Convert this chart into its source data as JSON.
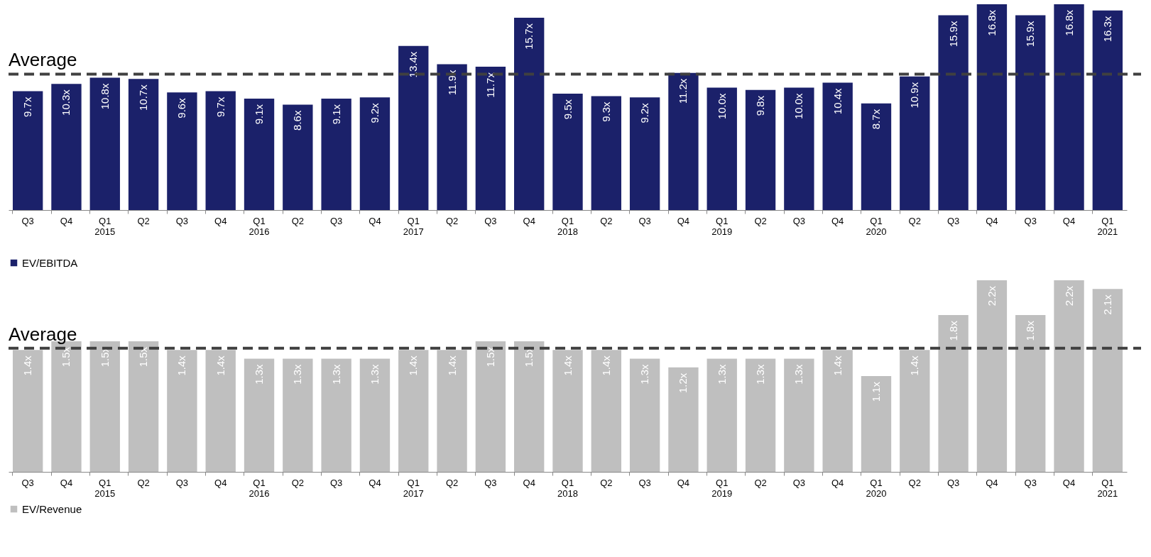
{
  "chart_data": [
    {
      "type": "bar",
      "categories": [
        "Q3",
        "Q4",
        "Q1\n2015",
        "Q2",
        "Q3",
        "Q4",
        "Q1\n2016",
        "Q2",
        "Q3",
        "Q4",
        "Q1\n2017",
        "Q2",
        "Q3",
        "Q4",
        "Q1\n2018",
        "Q2",
        "Q3",
        "Q4",
        "Q1\n2019",
        "Q2",
        "Q3",
        "Q4",
        "Q1\n2020",
        "Q2",
        "Q3",
        "Q4",
        "Q3",
        "Q4",
        "Q1\n2021"
      ],
      "series": [
        {
          "name": "EV/EBITDA",
          "color": "#1b216a",
          "values": [
            9.7,
            10.3,
            10.8,
            10.7,
            9.6,
            9.7,
            9.1,
            8.6,
            9.1,
            9.2,
            13.4,
            11.9,
            11.7,
            15.7,
            9.5,
            9.3,
            9.2,
            11.2,
            10.0,
            9.8,
            10.0,
            10.4,
            8.7,
            10.9,
            15.9,
            16.8,
            15.9,
            16.8,
            16.3
          ],
          "value_labels": [
            "9.7x",
            "10.3x",
            "10.8x",
            "10.7x",
            "9.6x",
            "9.7x",
            "9.1x",
            "8.6x",
            "9.1x",
            "9.2x",
            "13.4x",
            "11.9x",
            "11.7x",
            "15.7x",
            "9.5x",
            "9.3x",
            "9.2x",
            "11.2x",
            "10.0x",
            "9.8x",
            "10.0x",
            "10.4x",
            "8.7x",
            "10.9x",
            "15.9x",
            "16.8x",
            "15.9x",
            "16.8x",
            "16.3x"
          ]
        }
      ],
      "ylim": [
        0,
        16.8
      ],
      "legend": "bottom",
      "ref_lines": [
        {
          "axis": "y",
          "value": 11.1,
          "label": "Average",
          "color": "#404040",
          "line_style": "dashed"
        }
      ]
    },
    {
      "type": "bar",
      "categories": [
        "Q3",
        "Q4",
        "Q1\n2015",
        "Q2",
        "Q3",
        "Q4",
        "Q1\n2016",
        "Q2",
        "Q3",
        "Q4",
        "Q1\n2017",
        "Q2",
        "Q3",
        "Q4",
        "Q1\n2018",
        "Q2",
        "Q3",
        "Q4",
        "Q1\n2019",
        "Q2",
        "Q3",
        "Q4",
        "Q1\n2020",
        "Q2",
        "Q3",
        "Q4",
        "Q3",
        "Q4",
        "Q1\n2021"
      ],
      "series": [
        {
          "name": "EV/Revenue",
          "color": "#bfbfbf",
          "values": [
            1.4,
            1.5,
            1.5,
            1.5,
            1.4,
            1.4,
            1.3,
            1.3,
            1.3,
            1.3,
            1.4,
            1.4,
            1.5,
            1.5,
            1.4,
            1.4,
            1.3,
            1.2,
            1.3,
            1.3,
            1.3,
            1.4,
            1.1,
            1.4,
            1.8,
            2.2,
            1.8,
            2.2,
            2.1
          ],
          "value_labels": [
            "1.4x",
            "1.5x",
            "1.5x",
            "1.5x",
            "1.4x",
            "1.4x",
            "1.3x",
            "1.3x",
            "1.3x",
            "1.3x",
            "1.4x",
            "1.4x",
            "1.5x",
            "1.5x",
            "1.4x",
            "1.4x",
            "1.3x",
            "1.2x",
            "1.3x",
            "1.3x",
            "1.3x",
            "1.4x",
            "1.1x",
            "1.4x",
            "1.8x",
            "2.2x",
            "1.8x",
            "2.2x",
            "2.1x"
          ]
        }
      ],
      "ylim": [
        0,
        2.2
      ],
      "legend": "bottom",
      "ref_lines": [
        {
          "axis": "y",
          "value": 1.42,
          "label": "Average",
          "color": "#404040",
          "line_style": "dashed"
        }
      ]
    }
  ]
}
